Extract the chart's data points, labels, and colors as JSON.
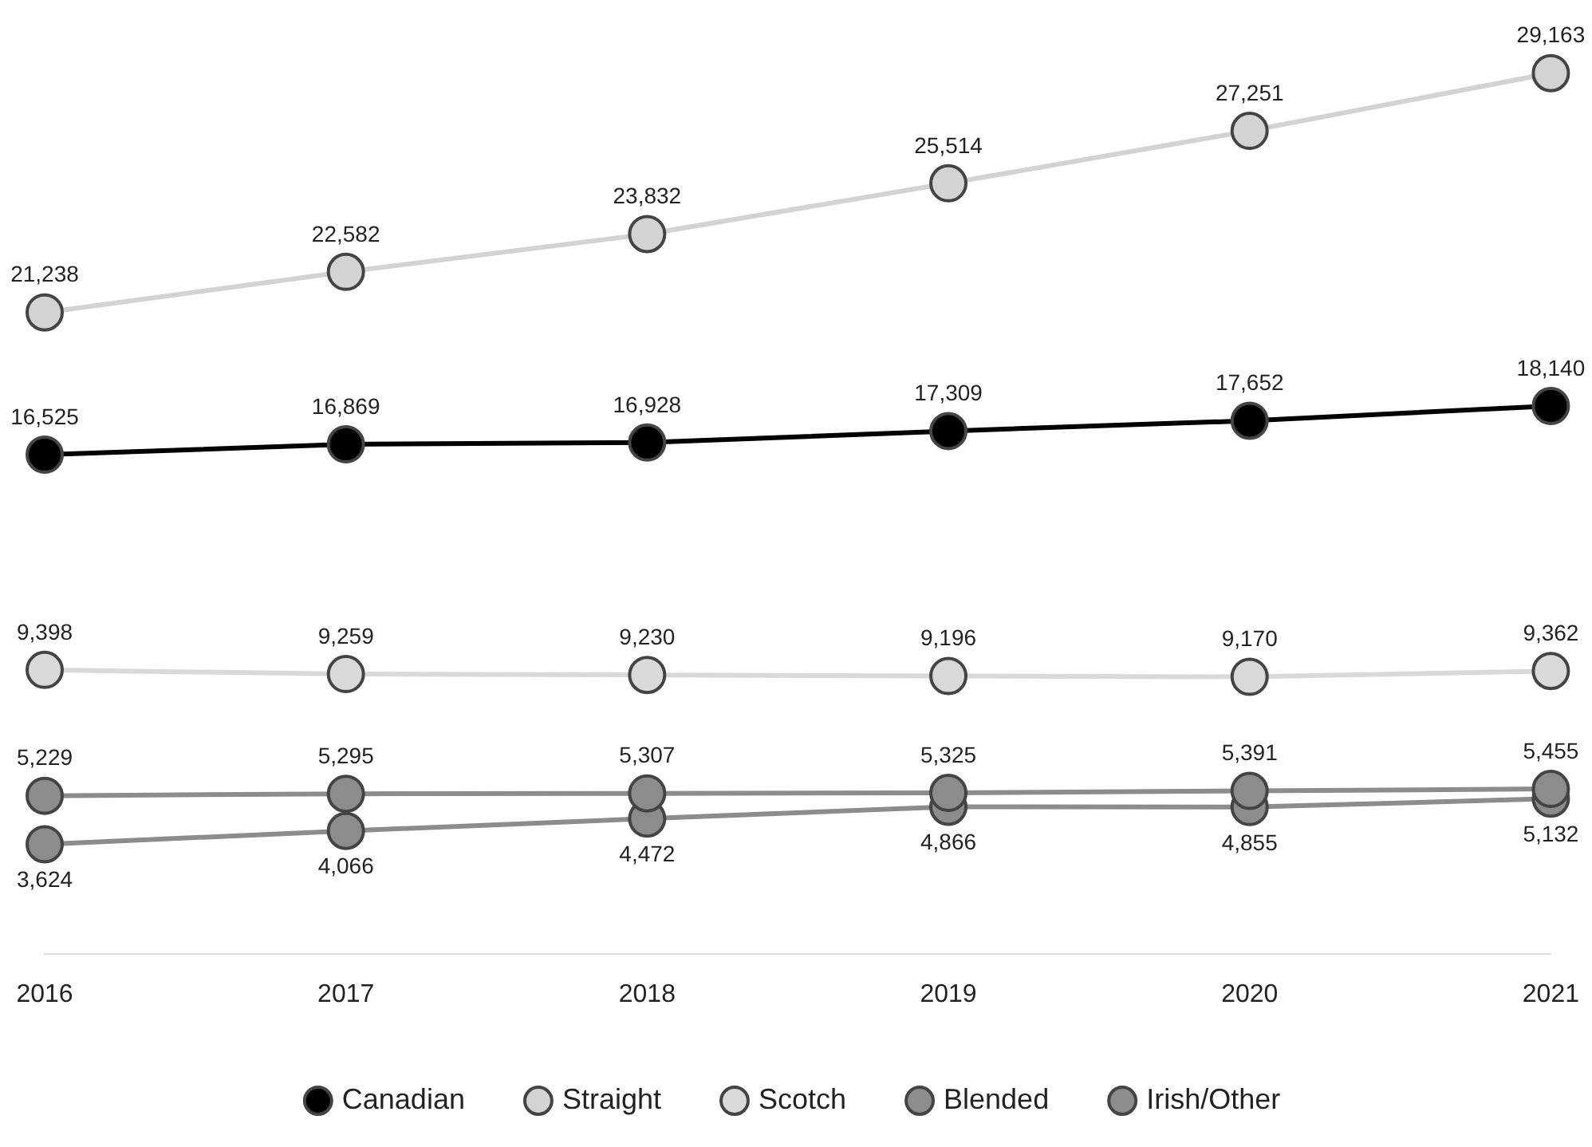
{
  "chart_data": {
    "type": "line",
    "categories": [
      "2016",
      "2017",
      "2018",
      "2019",
      "2020",
      "2021"
    ],
    "tick_labels": "x",
    "legend": "bottom",
    "marker": "circle",
    "grid": false,
    "series": [
      {
        "name": "Canadian",
        "color": "#000000",
        "values": [
          16525,
          16869,
          16928,
          17309,
          17652,
          18140
        ],
        "value_labels": [
          "16,525",
          "16,869",
          "16,928",
          "17,309",
          "17,652",
          "18,140"
        ]
      },
      {
        "name": "Straight",
        "color": "#d3d3d3",
        "values": [
          21238,
          22582,
          23832,
          25514,
          27251,
          29163
        ],
        "value_labels": [
          "21,238",
          "22,582",
          "23,832",
          "25,514",
          "27,251",
          "29,163"
        ]
      },
      {
        "name": "Scotch",
        "color": "#d9d9d9",
        "values": [
          9398,
          9259,
          9230,
          9196,
          9170,
          9362
        ],
        "value_labels": [
          "9,398",
          "9,259",
          "9,230",
          "9,196",
          "9,170",
          "9,362"
        ]
      },
      {
        "name": "Blended",
        "color": "#8c8c8c",
        "values": [
          5229,
          5295,
          5307,
          5325,
          5391,
          5455
        ],
        "value_labels": [
          "5,229",
          "5,295",
          "5,307",
          "5,325",
          "5,391",
          "5,455"
        ]
      },
      {
        "name": "Irish/Other",
        "color": "#8c8c8c",
        "values": [
          3624,
          4066,
          4472,
          4866,
          4855,
          5132
        ],
        "value_labels": [
          "3,624",
          "4,066",
          "4,472",
          "4,866",
          "4,855",
          "5,132"
        ]
      }
    ]
  }
}
